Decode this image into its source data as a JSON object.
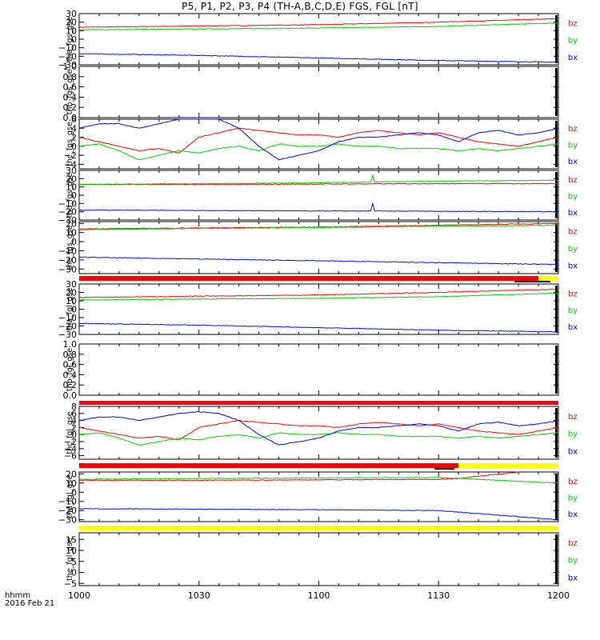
{
  "title": "P5, P1, P2, P3, P4 (TH-A,B,C,D,E) FGS, FGL [nT]",
  "footer": {
    "time_unit": "hhmm",
    "date": "2016 Feb 21"
  },
  "colors": {
    "bz": "#ff0000",
    "by": "#00cc00",
    "bx": "#0000ff",
    "bar_red": "#ff0000",
    "bar_yellow": "#ffff00",
    "bar_black": "#000000"
  },
  "chart_data": {
    "type": "line",
    "x_axis": {
      "range": [
        "1000",
        "1200"
      ],
      "tick_labels": [
        "1000",
        "1030",
        "1100",
        "1130",
        "1200"
      ]
    },
    "panels": [
      {
        "ylabel": "tha_fgs_gse",
        "ylim": [
          -30,
          30
        ],
        "yticks": [
          "30",
          "20",
          "10",
          "0",
          "−10",
          "−20",
          "−30"
        ],
        "legend": [
          "bz",
          "by",
          "bx"
        ],
        "series": [
          {
            "name": "bz",
            "x": [
              1000,
              1030,
              1100,
              1130,
              1200
            ],
            "y": [
              14,
              15.5,
              17,
              20,
              24
            ]
          },
          {
            "name": "by",
            "x": [
              1000,
              1030,
              1100,
              1130,
              1200
            ],
            "y": [
              11,
              12,
              13,
              15,
              19
            ]
          },
          {
            "name": "bx",
            "x": [
              1000,
              1030,
              1100,
              1130,
              1200
            ],
            "y": [
              -17,
              -19,
              -22,
              -25,
              -27
            ]
          }
        ]
      },
      {
        "ylabel": "thb_fgs_gse",
        "ylim": [
          0,
          1
        ],
        "yticks": [
          "1.0",
          "0.8",
          "0.6",
          "0.4",
          "0.2",
          "0.0"
        ],
        "legend": [],
        "series": []
      },
      {
        "ylabel": "thc_fgs_gse",
        "ylim": [
          -5,
          6
        ],
        "yticks": [
          "6",
          "4",
          "2",
          "0",
          "−2",
          "−4"
        ],
        "legend": [
          "bz",
          "by",
          "bx"
        ],
        "series": [
          {
            "name": "bz",
            "x": [
              1000,
              1005,
              1010,
              1015,
              1020,
              1025,
              1030,
              1035,
              1040,
              1045,
              1050,
              1055,
              1100,
              1105,
              1110,
              1115,
              1120,
              1125,
              1130,
              1135,
              1140,
              1145,
              1150,
              1155,
              1200
            ],
            "y": [
              2,
              1,
              0,
              -1,
              -0.5,
              -1.5,
              2,
              3,
              4,
              3.5,
              3,
              2.5,
              2.5,
              2,
              3,
              3.5,
              3,
              2.5,
              3,
              2,
              1,
              0.5,
              0,
              1,
              2
            ]
          },
          {
            "name": "by",
            "x": [
              1000,
              1005,
              1010,
              1015,
              1020,
              1025,
              1030,
              1035,
              1040,
              1045,
              1050,
              1055,
              1100,
              1105,
              1110,
              1115,
              1120,
              1125,
              1130,
              1135,
              1140,
              1145,
              1150,
              1155,
              1200
            ],
            "y": [
              0,
              0.5,
              -1,
              -3,
              -2,
              -1,
              -1.5,
              -0.5,
              0,
              -1,
              0.5,
              0,
              0,
              0.5,
              0,
              0,
              -0.5,
              -0.5,
              -0.5,
              -1,
              -0.5,
              -1,
              -0.5,
              0,
              0.5
            ]
          },
          {
            "name": "bx",
            "x": [
              1000,
              1005,
              1010,
              1015,
              1020,
              1025,
              1030,
              1035,
              1040,
              1045,
              1050,
              1055,
              1100,
              1105,
              1110,
              1115,
              1120,
              1125,
              1130,
              1135,
              1140,
              1145,
              1150,
              1155,
              1200
            ],
            "y": [
              4,
              5,
              5,
              4,
              5,
              6,
              6.5,
              6,
              4,
              0,
              -3,
              -2,
              -1,
              1,
              2,
              2,
              2.5,
              3,
              2.5,
              1,
              3,
              3.5,
              2.5,
              3,
              4
            ]
          }
        ]
      },
      {
        "ylabel": "thd_fgs_gse",
        "ylim": [
          -30,
          30
        ],
        "yticks": [
          "30",
          "20",
          "10",
          "0",
          "−10",
          "−20",
          "−30"
        ],
        "legend": [
          "bz",
          "by",
          "bx"
        ],
        "series": [
          {
            "name": "bz",
            "x": [
              1000,
              1030,
              1100,
              1130,
              1200
            ],
            "y": [
              13,
              13,
              13.5,
              14,
              14
            ]
          },
          {
            "name": "by",
            "x": [
              1000,
              1030,
              1100,
              1113,
              1113.5,
              1114,
              1130,
              1200
            ],
            "y": [
              13,
              14,
              15,
              16,
              24,
              16,
              17,
              18
            ]
          },
          {
            "name": "bx",
            "x": [
              1000,
              1030,
              1100,
              1113,
              1113.5,
              1114,
              1130,
              1200
            ],
            "y": [
              -18,
              -18.5,
              -19,
              -19,
              -10,
              -19,
              -19.5,
              -20
            ]
          }
        ]
      },
      {
        "ylabel": "the_fgs_gse",
        "ylim": [
          -35,
          22
        ],
        "yticks": [
          "20",
          "10",
          "0",
          "−10",
          "−20",
          "−30"
        ],
        "legend": [
          "bz",
          "by",
          "bx"
        ],
        "series": [
          {
            "name": "bz",
            "x": [
              1000,
              1030,
              1100,
              1130,
              1200
            ],
            "y": [
              14,
              15,
              16,
              18,
              20
            ]
          },
          {
            "name": "by",
            "x": [
              1000,
              1030,
              1100,
              1130,
              1200
            ],
            "y": [
              13,
              14.5,
              15.5,
              17,
              18
            ]
          },
          {
            "name": "bx",
            "x": [
              1000,
              1030,
              1100,
              1130,
              1200
            ],
            "y": [
              -17,
              -19,
              -21,
              -23,
              -25
            ]
          }
        ]
      },
      {
        "ylabel": "tha_fgl_gse",
        "ylim": [
          -30,
          30
        ],
        "yticks": [
          "30",
          "20",
          "10",
          "0",
          "−10",
          "−20",
          "−30"
        ],
        "legend": [
          "bz",
          "by",
          "bx"
        ],
        "series": [
          {
            "name": "bz",
            "x": [
              1000,
              1030,
              1100,
              1130,
              1200
            ],
            "y": [
              14,
              15.5,
              17,
              20,
              24
            ]
          },
          {
            "name": "by",
            "x": [
              1000,
              1030,
              1100,
              1130,
              1200
            ],
            "y": [
              11,
              12,
              13,
              15,
              19
            ]
          },
          {
            "name": "bx",
            "x": [
              1000,
              1030,
              1100,
              1130,
              1200
            ],
            "y": [
              -17,
              -19,
              -22,
              -25,
              -27
            ]
          }
        ]
      },
      {
        "ylabel": "thb_fgl_gse",
        "ylim": [
          0,
          1
        ],
        "yticks": [
          "1.0",
          "0.8",
          "0.6",
          "0.4",
          "0.2",
          "0.0"
        ],
        "legend": [],
        "series": []
      },
      {
        "ylabel": "thc_fgl_gse",
        "ylim": [
          -7,
          8
        ],
        "yticks": [
          "8",
          "6",
          "4",
          "2",
          "0",
          "−2",
          "−4",
          "−6"
        ],
        "legend": [
          "bz",
          "by",
          "bx"
        ],
        "series": [
          {
            "name": "bz",
            "x": [
              1000,
              1005,
              1010,
              1015,
              1020,
              1025,
              1030,
              1035,
              1040,
              1045,
              1050,
              1055,
              1100,
              1105,
              1110,
              1115,
              1120,
              1125,
              1130,
              1135,
              1140,
              1145,
              1150,
              1155,
              1200
            ],
            "y": [
              2,
              1,
              0,
              -1,
              -0.5,
              -1.5,
              2,
              3,
              4,
              3.5,
              3,
              2.5,
              2.5,
              2,
              3,
              3.5,
              3,
              2.5,
              3,
              2,
              1,
              0.5,
              0,
              1,
              2
            ]
          },
          {
            "name": "by",
            "x": [
              1000,
              1005,
              1010,
              1015,
              1020,
              1025,
              1030,
              1035,
              1040,
              1045,
              1050,
              1055,
              1100,
              1105,
              1110,
              1115,
              1120,
              1125,
              1130,
              1135,
              1140,
              1145,
              1150,
              1155,
              1200
            ],
            "y": [
              0,
              0.5,
              -1,
              -3,
              -2,
              -1,
              -1.5,
              -0.5,
              0,
              -1,
              0.5,
              0,
              0,
              0.5,
              0,
              0,
              -0.5,
              -0.5,
              -0.5,
              -1,
              -0.5,
              -1,
              -0.5,
              0,
              0.5
            ]
          },
          {
            "name": "bx",
            "x": [
              1000,
              1005,
              1010,
              1015,
              1020,
              1025,
              1030,
              1035,
              1040,
              1045,
              1050,
              1055,
              1100,
              1105,
              1110,
              1115,
              1120,
              1125,
              1130,
              1135,
              1140,
              1145,
              1150,
              1155,
              1200
            ],
            "y": [
              4,
              5,
              5,
              4,
              5,
              6,
              6.5,
              6,
              4,
              0,
              -3,
              -2,
              -1,
              1,
              2,
              2,
              2.5,
              3,
              2.5,
              1,
              3,
              3.5,
              2.5,
              3,
              4
            ]
          }
        ]
      },
      {
        "ylabel": "thd_fgl_gse",
        "ylim": [
          -32,
          22
        ],
        "yticks": [
          "20",
          "10",
          "0",
          "−10",
          "−20",
          "−30"
        ],
        "legend": [
          "bz",
          "by",
          "bx"
        ],
        "series": [
          {
            "name": "bz",
            "x": [
              1000,
              1030,
              1100,
              1130,
              1135,
              1150
            ],
            "y": [
              13,
              13,
              13.5,
              14,
              15,
              22
            ]
          },
          {
            "name": "by",
            "x": [
              1000,
              1030,
              1100,
              1130,
              1200
            ],
            "y": [
              14,
              15,
              15.5,
              16,
              10
            ]
          },
          {
            "name": "bx",
            "x": [
              1000,
              1030,
              1100,
              1130,
              1200
            ],
            "y": [
              -18,
              -18.5,
              -19,
              -20,
              -30
            ]
          }
        ]
      },
      {
        "ylabel": "the_fgl_gse",
        "ylim": [
          -6,
          18
        ],
        "yticks": [
          "15",
          "10",
          "5",
          "0",
          "−5"
        ],
        "legend": [
          "bz",
          "by",
          "bx"
        ],
        "series": []
      }
    ],
    "status_bars": [
      {
        "after_panel": 4,
        "segments": [
          {
            "from": 1000,
            "to": 1155,
            "color": "bar_red"
          },
          {
            "from": 1155,
            "to": 1200,
            "color": "bar_yellow"
          }
        ],
        "marker": {
          "from": 1149,
          "to": 1158
        }
      },
      {
        "after_panel": 6,
        "segments": [
          {
            "from": 1000,
            "to": 1200,
            "color": "bar_red"
          }
        ]
      },
      {
        "after_panel": 7,
        "segments": [
          {
            "from": 1000,
            "to": 1135,
            "color": "bar_red"
          },
          {
            "from": 1135,
            "to": 1200,
            "color": "bar_yellow"
          }
        ],
        "marker": {
          "from": 1129,
          "to": 1134
        }
      },
      {
        "after_panel": 8,
        "segments": [
          {
            "from": 1000,
            "to": 1200,
            "color": "bar_yellow"
          }
        ]
      }
    ]
  }
}
